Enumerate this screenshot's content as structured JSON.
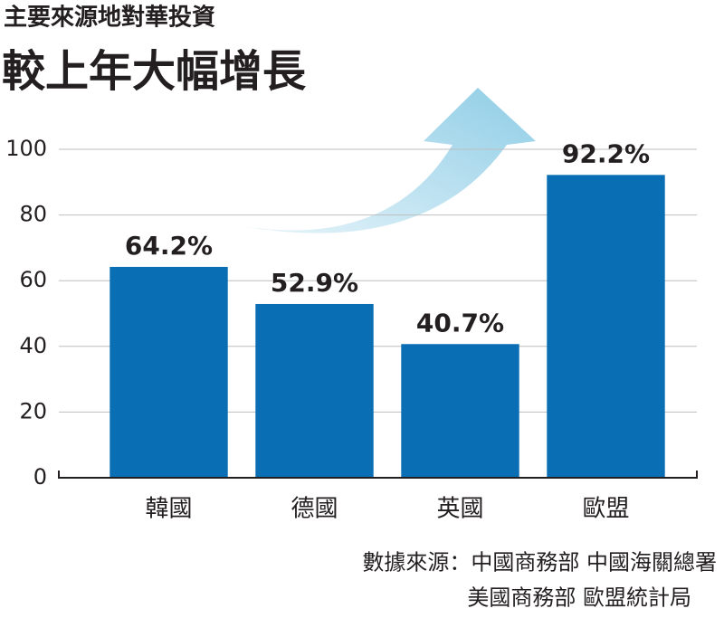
{
  "chart_data": {
    "type": "bar",
    "subtitle": "主要來源地對華投資",
    "title": "較上年大幅增長",
    "categories": [
      "韓國",
      "德國",
      "英國",
      "歐盟"
    ],
    "values": [
      64.2,
      52.9,
      40.7,
      92.2
    ],
    "value_labels": [
      "64.2%",
      "52.9%",
      "40.7%",
      "92.2%"
    ],
    "color": "#0a6eb4",
    "ylim": [
      0,
      100
    ],
    "yticks": [
      0,
      20,
      40,
      60,
      80,
      100
    ],
    "grid": true,
    "source": [
      "數據來源：中國商務部 中國海關總署",
      "美國商務部 歐盟統計局"
    ]
  }
}
